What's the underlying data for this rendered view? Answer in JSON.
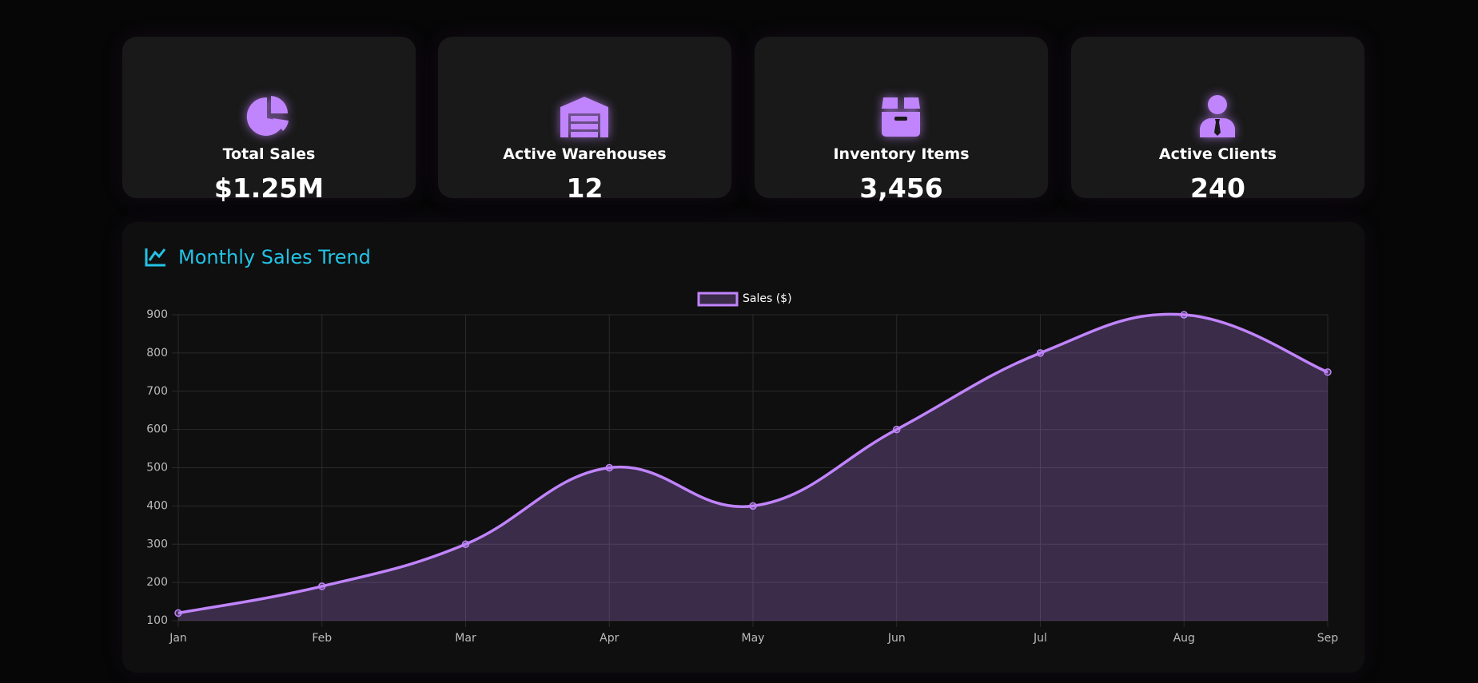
{
  "stats": [
    {
      "label": "Total Sales",
      "value": "$1.25M"
    },
    {
      "label": "Active Warehouses",
      "value": "12"
    },
    {
      "label": "Inventory Items",
      "value": "3,456"
    },
    {
      "label": "Active Clients",
      "value": "240"
    }
  ],
  "chart_data": {
    "type": "line",
    "title": "Monthly Sales Trend",
    "categories": [
      "Jan",
      "Feb",
      "Mar",
      "Apr",
      "May",
      "Jun",
      "Jul",
      "Aug",
      "Sep"
    ],
    "series": [
      {
        "name": "Sales ($)",
        "color": "#c084fc",
        "values": [
          120,
          190,
          300,
          500,
          400,
          600,
          800,
          900,
          750
        ]
      }
    ],
    "ylim": [
      100,
      900
    ],
    "yticks": [
      100,
      200,
      300,
      400,
      500,
      600,
      700,
      800,
      900
    ],
    "grid": true
  }
}
